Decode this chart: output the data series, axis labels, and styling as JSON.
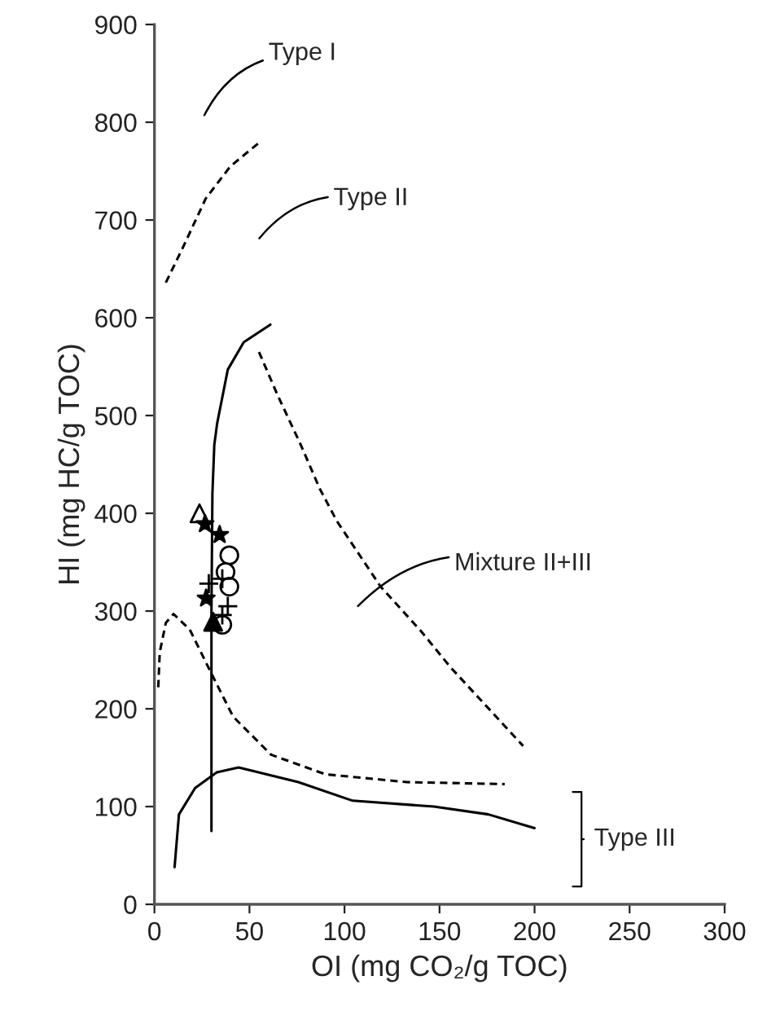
{
  "chart_data": {
    "type": "line",
    "xlabel": "OI (mg CO₂/g TOC)",
    "ylabel": "HI (mg HC/g TOC)",
    "xlim": [
      0,
      300
    ],
    "ylim": [
      0,
      900
    ],
    "xticks": [
      0,
      50,
      100,
      150,
      200,
      250,
      300
    ],
    "yticks": [
      0,
      100,
      200,
      300,
      400,
      500,
      600,
      700,
      800,
      900
    ],
    "grid": false,
    "legend": false,
    "series": [
      {
        "color": "#000000",
        "line_style": "dashed",
        "x": [
          6,
          15,
          27,
          40,
          55
        ],
        "values": [
          636,
          672,
          722,
          755,
          779
        ]
      },
      {
        "color": "#000000",
        "line_style": "solid",
        "x": [
          30,
          30,
          30.5,
          31.5,
          33,
          38.6,
          47,
          61
        ],
        "values": [
          75,
          300,
          420,
          470,
          492,
          547,
          575,
          593
        ]
      },
      {
        "color": "#000000",
        "line_style": "dashed",
        "x": [
          55,
          65,
          77,
          87,
          96,
          119,
          140,
          156,
          175,
          194
        ],
        "values": [
          565,
          520,
          470,
          425,
          392,
          325,
          280,
          242,
          202,
          162
        ]
      },
      {
        "color": "#000000",
        "line_style": "dashed",
        "x": [
          2,
          2.8,
          6,
          10,
          18.6,
          30,
          41.4,
          61.4,
          90,
          132.9,
          184.3
        ],
        "values": [
          222,
          258,
          288,
          297,
          281,
          236,
          192,
          153,
          133,
          125,
          123
        ]
      },
      {
        "color": "#000000",
        "line_style": "solid",
        "x": [
          10.6,
          12.9,
          21.4,
          32.8,
          44.3,
          75.7,
          104.3,
          147,
          175.7,
          200
        ],
        "values": [
          38,
          92,
          119,
          135,
          140,
          125,
          106,
          100,
          92,
          78
        ]
      },
      {
        "type": "scatter",
        "color": "#ffffff",
        "marker": "triangle",
        "x": [
          23.7
        ],
        "values": [
          400
        ]
      },
      {
        "type": "scatter",
        "color": "#000000",
        "marker": "star",
        "x": [
          26.6,
          34.3,
          27.2
        ],
        "values": [
          389,
          378,
          313
        ]
      },
      {
        "type": "scatter",
        "color": "#ffffff",
        "marker": "circle",
        "x": [
          39.4,
          37.4,
          39.4,
          35.7
        ],
        "values": [
          357,
          340,
          325,
          286
        ]
      },
      {
        "type": "scatter",
        "color": "#000000",
        "marker": "cross",
        "x": [
          28.6,
          35.7,
          38.6,
          35.7
        ],
        "values": [
          328,
          333,
          305,
          296
        ]
      },
      {
        "type": "scatter",
        "color": "#000000",
        "marker": "triangle",
        "x": [
          30.9
        ],
        "values": [
          289
        ]
      }
    ],
    "annotations": [
      "Type I",
      "Type II",
      "Mixture II+III",
      "Type III"
    ]
  }
}
